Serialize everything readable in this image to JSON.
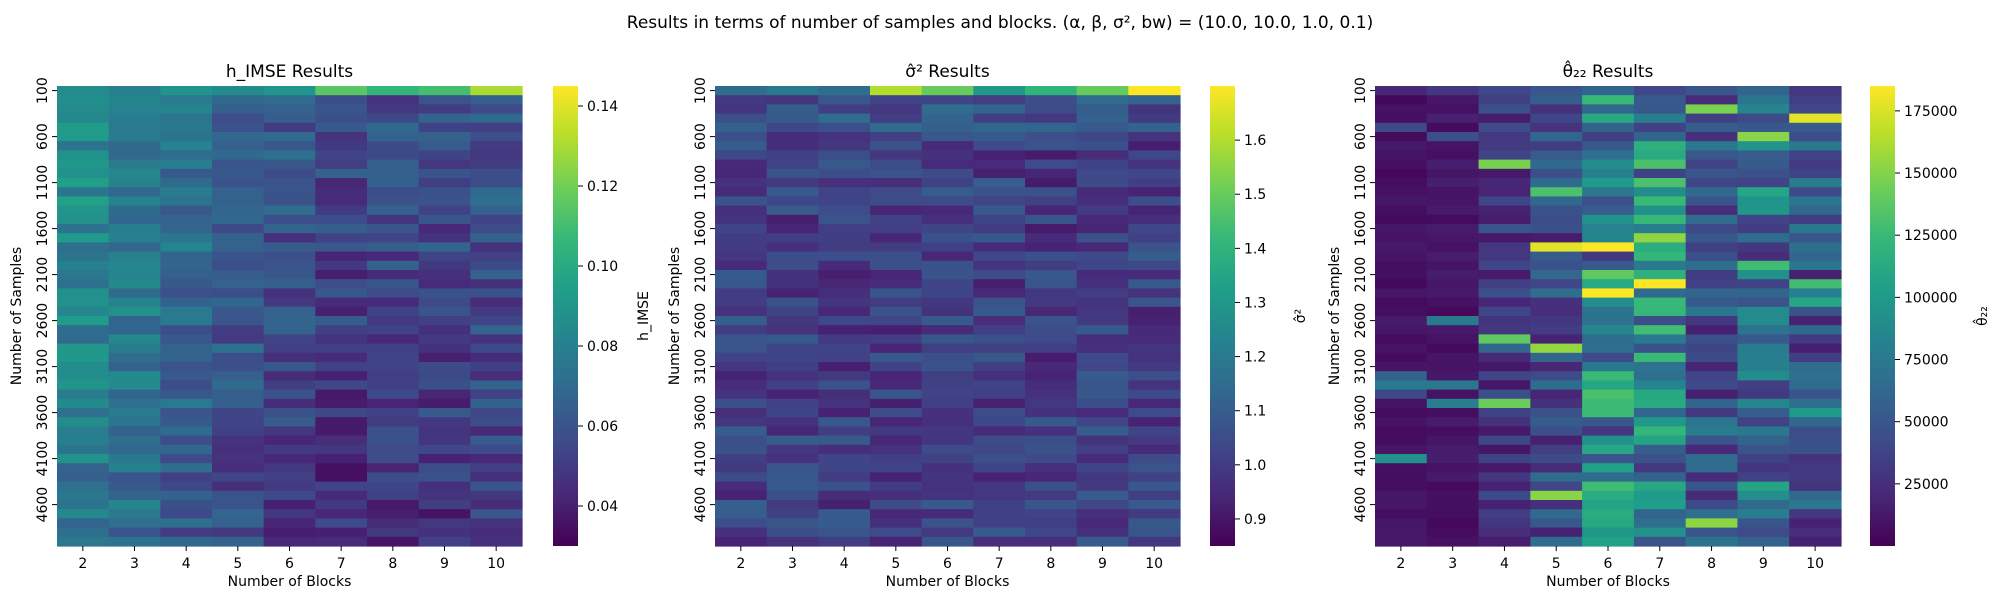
{
  "figure": {
    "suptitle": "Results in terms of number of samples and blocks. (α, β, σ², bw) = (10.0, 10.0, 1.0, 0.1)"
  },
  "colors": {
    "viridis": [
      "#440154",
      "#482878",
      "#3e4989",
      "#31688e",
      "#26828e",
      "#1f9e89",
      "#35b779",
      "#6ece58",
      "#b5de2b",
      "#fde725"
    ]
  },
  "chart_data": [
    {
      "type": "heatmap",
      "title": "h_IMSE Results",
      "xlabel": "Number of Blocks",
      "ylabel": "Number of Samples",
      "colorbar_label": "h_IMSE",
      "x_ticks": [
        "2",
        "3",
        "4",
        "5",
        "6",
        "7",
        "8",
        "9",
        "10"
      ],
      "y_ticks": [
        "100",
        "600",
        "1100",
        "1600",
        "2100",
        "2600",
        "3100",
        "3600",
        "4100",
        "4600"
      ],
      "n_rows": 50,
      "vmin": 0.03,
      "vmax": 0.145,
      "colorbar_ticks": [
        0.04,
        0.06,
        0.08,
        0.1,
        0.12,
        0.14
      ],
      "colorbar_tick_labels": [
        "0.04",
        "0.06",
        "0.08",
        "0.10",
        "0.12",
        "0.14"
      ],
      "column_means": [
        0.075,
        0.07,
        0.062,
        0.055,
        0.05,
        0.045,
        0.046,
        0.047,
        0.05
      ],
      "top_row_values": [
        0.085,
        0.08,
        0.09,
        0.085,
        0.09,
        0.115,
        0.105,
        0.11,
        0.13
      ],
      "seed": 11
    },
    {
      "type": "heatmap",
      "title": "σ̂² Results",
      "xlabel": "Number of Blocks",
      "ylabel": "Number of Samples",
      "colorbar_label": "σ̂²",
      "x_ticks": [
        "2",
        "3",
        "4",
        "5",
        "6",
        "7",
        "8",
        "9",
        "10"
      ],
      "y_ticks": [
        "100",
        "600",
        "1100",
        "1600",
        "2100",
        "2600",
        "3100",
        "3600",
        "4100",
        "4600"
      ],
      "n_rows": 50,
      "vmin": 0.85,
      "vmax": 1.7,
      "colorbar_ticks": [
        0.9,
        1.0,
        1.1,
        1.2,
        1.3,
        1.4,
        1.5,
        1.6
      ],
      "colorbar_tick_labels": [
        "0.9",
        "1.0",
        "1.1",
        "1.2",
        "1.3",
        "1.4",
        "1.5",
        "1.6"
      ],
      "column_means": [
        1.02,
        1.01,
        1.01,
        1.01,
        1.01,
        1.01,
        1.0,
        1.01,
        1.01
      ],
      "top_row_values": [
        1.15,
        1.2,
        1.15,
        1.6,
        1.5,
        1.3,
        1.4,
        1.5,
        1.7
      ],
      "seed": 23
    },
    {
      "type": "heatmap",
      "title": "θ̂₂₂ Results",
      "xlabel": "Number of Blocks",
      "ylabel": "Number of Samples",
      "colorbar_label": "θ̂₂₂",
      "x_ticks": [
        "2",
        "3",
        "4",
        "5",
        "6",
        "7",
        "8",
        "9",
        "10"
      ],
      "y_ticks": [
        "100",
        "600",
        "1100",
        "1600",
        "2100",
        "2600",
        "3100",
        "3600",
        "4100",
        "4600"
      ],
      "n_rows": 50,
      "vmin": 0,
      "vmax": 185000,
      "colorbar_ticks": [
        25000,
        50000,
        75000,
        100000,
        125000,
        150000,
        175000
      ],
      "colorbar_tick_labels": [
        "25000",
        "50000",
        "75000",
        "100000",
        "125000",
        "150000",
        "175000"
      ],
      "column_means": [
        8000,
        10000,
        30000,
        40000,
        80000,
        80000,
        45000,
        60000,
        45000
      ],
      "top_row_values": [
        20000,
        30000,
        40000,
        50000,
        60000,
        40000,
        50000,
        60000,
        30000
      ],
      "seed": 37
    }
  ]
}
